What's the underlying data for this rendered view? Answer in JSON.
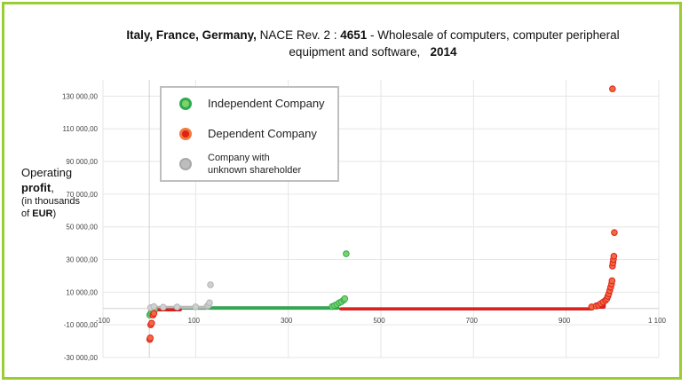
{
  "title": {
    "bold1": "Italy, France, Germany,",
    "plain1": " NACE Rev. 2 : ",
    "bold2": "4651",
    "plain2": " - Wholesale of computers, computer peripheral",
    "line2_plain": "equipment and software,",
    "line2_bold": "2014"
  },
  "ylabel": {
    "line1": "Operating",
    "line2": "profit",
    "line2_suffix": ",",
    "line3": "(in thousands",
    "line4_prefix": "of ",
    "line4_bold": "EUR",
    "line4_suffix": ")"
  },
  "legend": {
    "independent": "Independent Company",
    "dependent": "Dependent Company",
    "unknown_line1": "Company with",
    "unknown_line2": "unknown shareholder"
  },
  "colors": {
    "independent": "#2EAA4F",
    "independent_fill": "#7DD36B",
    "dependent": "#E0201A",
    "dependent_fill": "#F06A40",
    "unknown": "#BDBDBD",
    "frame": "#9ACD32",
    "grid": "#e6e6e6"
  },
  "chart_data": {
    "type": "scatter",
    "xlim": [
      -100,
      1100
    ],
    "ylim": [
      -30000,
      140000
    ],
    "x_ticks": [
      -100,
      100,
      300,
      500,
      700,
      900,
      1100
    ],
    "x_tick_labels": [
      "-100",
      "100",
      "300",
      "500",
      "700",
      "900",
      "1 100"
    ],
    "y_ticks": [
      -30000,
      -10000,
      10000,
      30000,
      50000,
      70000,
      90000,
      110000,
      130000
    ],
    "y_tick_labels": [
      "-30 000,00",
      "-10 000,00",
      "10 000,00",
      "30 000,00",
      "50 000,00",
      "70 000,00",
      "90 000,00",
      "110 000,00",
      "130 000,00"
    ],
    "grid": true,
    "legend_position": "top-left",
    "series": [
      {
        "name": "Independent Company",
        "bands": [
          [
            0,
            410,
            -600,
            1200
          ]
        ],
        "points": [
          [
            1,
            -4000
          ],
          [
            3,
            -3000
          ],
          [
            5,
            -2000
          ],
          [
            8,
            -1200
          ],
          [
            12,
            -800
          ],
          [
            395,
            1200
          ],
          [
            400,
            1800
          ],
          [
            405,
            2500
          ],
          [
            410,
            3500
          ],
          [
            415,
            4200
          ],
          [
            420,
            5300
          ],
          [
            422,
            6000
          ],
          [
            425,
            33500
          ]
        ]
      },
      {
        "name": "Dependent Company",
        "bands": [
          [
            5,
            70,
            -1500,
            0
          ],
          [
            410,
            960,
            -400,
            600
          ],
          [
            960,
            985,
            0,
            3500
          ]
        ],
        "points": [
          [
            1,
            -19000
          ],
          [
            2,
            -18000
          ],
          [
            3,
            -10000
          ],
          [
            5,
            -9000
          ],
          [
            8,
            -4000
          ],
          [
            10,
            -3000
          ],
          [
            955,
            1000
          ],
          [
            965,
            1500
          ],
          [
            970,
            2000
          ],
          [
            975,
            3000
          ],
          [
            980,
            4000
          ],
          [
            985,
            5000
          ],
          [
            988,
            6000
          ],
          [
            990,
            7500
          ],
          [
            992,
            9000
          ],
          [
            994,
            11000
          ],
          [
            996,
            13000
          ],
          [
            998,
            15000
          ],
          [
            999,
            17000
          ],
          [
            1000,
            26000
          ],
          [
            1001,
            28000
          ],
          [
            1002,
            30000
          ],
          [
            1003,
            32000
          ],
          [
            1004,
            46500
          ],
          [
            1000,
            134500
          ]
        ]
      },
      {
        "name": "Company with unknown shareholder",
        "bands": [
          [
            2,
            130,
            0,
            1500
          ]
        ],
        "points": [
          [
            3,
            500
          ],
          [
            10,
            1200
          ],
          [
            30,
            800
          ],
          [
            60,
            900
          ],
          [
            100,
            1000
          ],
          [
            125,
            1500
          ],
          [
            128,
            2000
          ],
          [
            130,
            3500
          ],
          [
            132,
            14500
          ]
        ]
      }
    ]
  }
}
